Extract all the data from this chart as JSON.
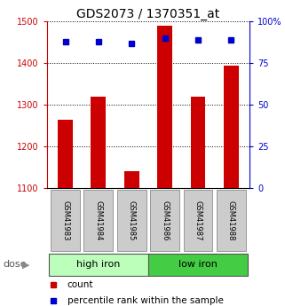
{
  "title": "GDS2073 / 1370351_at",
  "samples": [
    "GSM41983",
    "GSM41984",
    "GSM41985",
    "GSM41986",
    "GSM41987",
    "GSM41988"
  ],
  "counts": [
    1265,
    1320,
    1140,
    1490,
    1320,
    1395
  ],
  "percentile_ranks": [
    88,
    88,
    87,
    90,
    89,
    89
  ],
  "groups": [
    {
      "label": "high iron",
      "indices": [
        0,
        1,
        2
      ],
      "color": "#bbffbb"
    },
    {
      "label": "low iron",
      "indices": [
        3,
        4,
        5
      ],
      "color": "#44cc44"
    }
  ],
  "ylim_left": [
    1100,
    1500
  ],
  "yticks_left": [
    1100,
    1200,
    1300,
    1400,
    1500
  ],
  "ylim_right": [
    0,
    100
  ],
  "yticks_right": [
    0,
    25,
    50,
    75,
    100
  ],
  "bar_color": "#cc0000",
  "dot_color": "#0000cc",
  "bar_width": 0.45,
  "left_axis_color": "#cc0000",
  "right_axis_color": "#0000cc",
  "bg_color": "#ffffff",
  "sample_box_color": "#cccccc",
  "dose_label": "dose",
  "legend_count": "count",
  "legend_pct": "percentile rank within the sample",
  "tick_fontsize": 7,
  "title_fontsize": 10
}
